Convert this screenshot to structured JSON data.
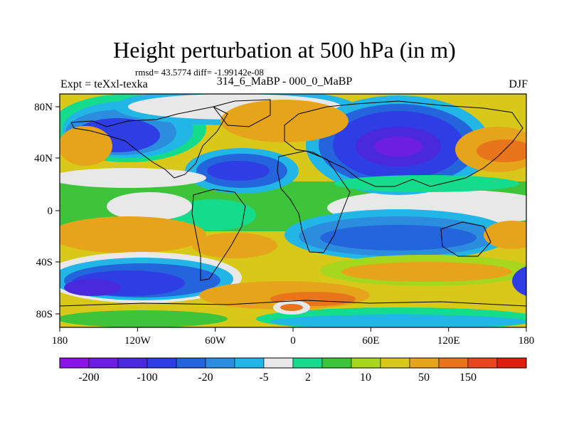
{
  "header": {
    "title": "Height perturbation at 500 hPa (in m)",
    "stats": "rmsd= 43.5774 diff= -1.99142e-08",
    "experiment": "Expt = teXxl-texka",
    "difference": "314_6_MaBP - 000_0_MaBP",
    "season": "DJF"
  },
  "map": {
    "lon_ticks": [
      "180",
      "120W",
      "60W",
      "0",
      "60E",
      "120E",
      "180"
    ],
    "lat_ticks": [
      "80N",
      "40N",
      "0",
      "40S",
      "80S"
    ]
  },
  "colorbar": {
    "colors": [
      "#8a14e6",
      "#6e1ee0",
      "#4a28dc",
      "#2e3ee4",
      "#2464dc",
      "#2c8cde",
      "#22b6e6",
      "#e8e8e8",
      "#14dc8c",
      "#3ec43a",
      "#a6d61e",
      "#d8c81a",
      "#e6a41a",
      "#e8741c",
      "#e8461e",
      "#e01e10"
    ],
    "labels": [
      "-200",
      "-100",
      "-20",
      "-5",
      "2",
      "10",
      "50",
      "150"
    ]
  }
}
